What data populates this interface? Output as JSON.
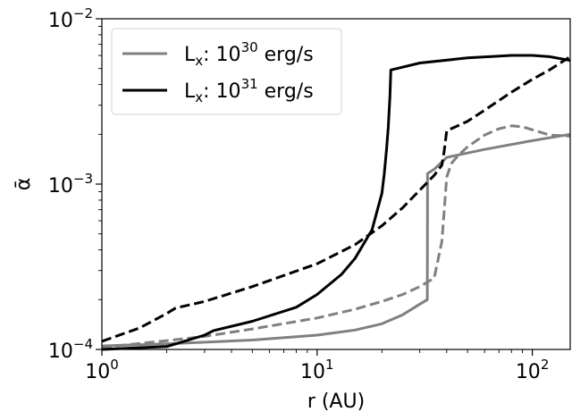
{
  "chart_data": {
    "type": "line",
    "xlabel": "r (AU)",
    "ylabel": "ᾱ",
    "xscale": "log",
    "yscale": "log",
    "xlim": [
      1,
      150
    ],
    "ylim": [
      0.0001,
      0.01
    ],
    "grid": false,
    "legend_position": "top-left",
    "x_ticks": [
      {
        "value": 1,
        "base": "10",
        "exp": "0"
      },
      {
        "value": 10,
        "base": "10",
        "exp": "1"
      },
      {
        "value": 100,
        "base": "10",
        "exp": "2"
      }
    ],
    "y_ticks": [
      {
        "value": 0.0001,
        "base": "10",
        "exp": "−4"
      },
      {
        "value": 0.001,
        "base": "10",
        "exp": "−3"
      },
      {
        "value": 0.01,
        "base": "10",
        "exp": "−2"
      }
    ],
    "legend": [
      {
        "prefix": "L",
        "sub": "x",
        "mid": ": 10",
        "sup": "30",
        "suffix": " erg/s",
        "color": "#808080"
      },
      {
        "prefix": "L",
        "sub": "x",
        "mid": ": 10",
        "sup": "31",
        "suffix": " erg/s",
        "color": "#000000"
      }
    ],
    "series": [
      {
        "color": "#808080",
        "dash": "solid",
        "x": [
          1,
          2,
          5,
          10,
          15,
          20,
          25,
          30,
          32.5,
          32.6,
          35,
          40,
          60,
          100,
          150
        ],
        "y": [
          0.000105,
          0.000108,
          0.000114,
          0.000122,
          0.000131,
          0.000143,
          0.000162,
          0.000188,
          0.0002,
          0.00116,
          0.00123,
          0.00145,
          0.00162,
          0.00183,
          0.002
        ]
      },
      {
        "color": "#808080",
        "dash": "dashed",
        "x": [
          1,
          2,
          3,
          5,
          10,
          15,
          20,
          25,
          30,
          35,
          38,
          40,
          42,
          45,
          50,
          60,
          70,
          80,
          90,
          100,
          120,
          150
        ],
        "y": [
          0.000103,
          0.000113,
          0.00012,
          0.000133,
          0.000155,
          0.000175,
          0.000195,
          0.000215,
          0.00024,
          0.00027,
          0.00045,
          0.0011,
          0.00133,
          0.00148,
          0.00168,
          0.00198,
          0.00216,
          0.00225,
          0.00222,
          0.00213,
          0.00198,
          0.00195
        ]
      },
      {
        "color": "#000000",
        "dash": "solid",
        "x": [
          1,
          2,
          3,
          3.3,
          5,
          8,
          10,
          13,
          15,
          18,
          20,
          20.5,
          21,
          21.4,
          21.8,
          22,
          30,
          50,
          80,
          100,
          120,
          150
        ],
        "y": [
          0.0001,
          0.000104,
          0.000122,
          0.00013,
          0.000148,
          0.00018,
          0.000215,
          0.000285,
          0.000355,
          0.00053,
          0.00088,
          0.00115,
          0.0016,
          0.0022,
          0.0034,
          0.0049,
          0.0054,
          0.0058,
          0.006,
          0.006,
          0.0059,
          0.0056
        ]
      },
      {
        "color": "#000000",
        "dash": "dashed",
        "x": [
          1,
          1.5,
          2,
          2.2,
          3,
          5,
          10,
          15,
          20,
          25,
          30,
          35,
          38,
          39,
          40,
          50,
          60,
          80,
          100,
          120,
          150
        ],
        "y": [
          0.000112,
          0.000135,
          0.000165,
          0.000178,
          0.000195,
          0.00024,
          0.00033,
          0.00043,
          0.00056,
          0.00072,
          0.00092,
          0.00113,
          0.0013,
          0.0016,
          0.0021,
          0.0024,
          0.0028,
          0.0036,
          0.0043,
          0.0049,
          0.0059
        ]
      }
    ]
  }
}
